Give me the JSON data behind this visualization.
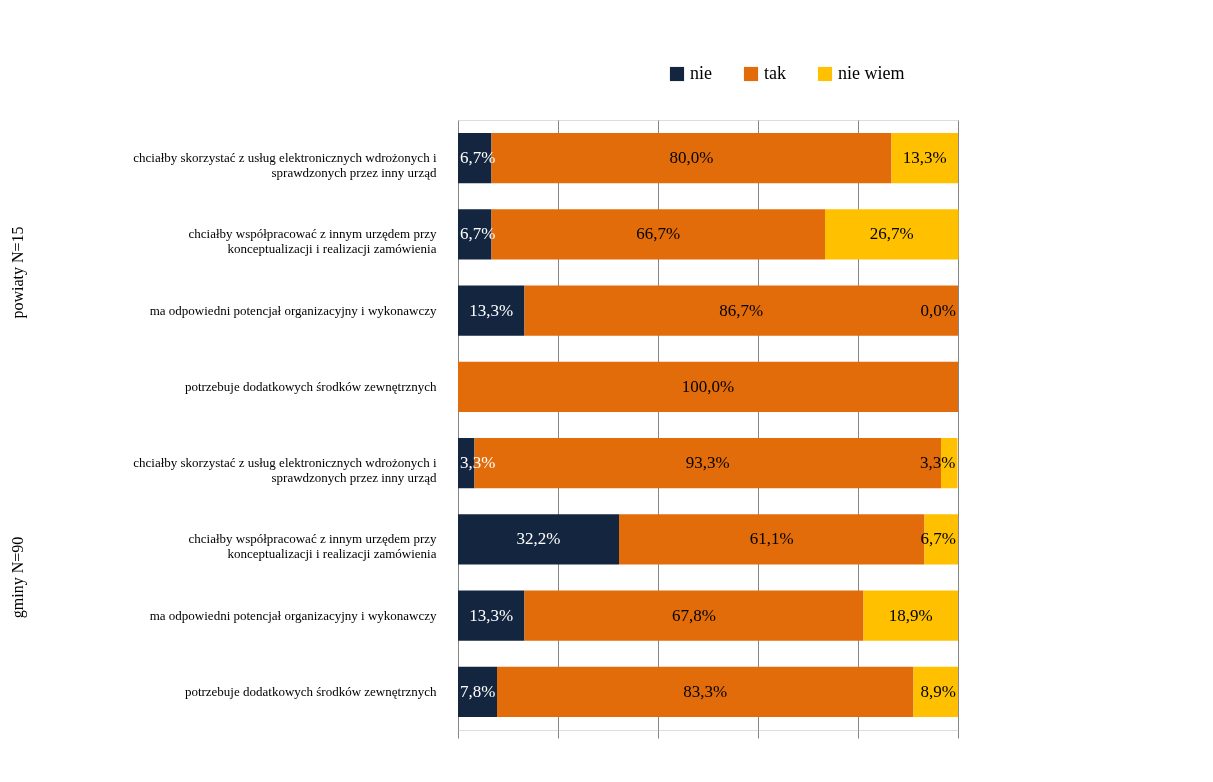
{
  "chart_data": {
    "type": "bar",
    "orientation": "horizontal",
    "stacked": true,
    "categories": [
      "chciałby skorzystać z usług elektronicznych wdrożonych i\nsprawdzonych przez inny urząd",
      "chciałby współpracować z innym urzędem przy\nkonceptualizacji i realizacji zamówienia",
      "ma odpowiedni potencjał organizacyjny i wykonawczy",
      "potrzebuje dodatkowych środków zewnętrznych",
      "chciałby skorzystać z usług elektronicznych wdrożonych i\nsprawdzonych przez inny urząd",
      "chciałby współpracować z innym urzędem przy\nkonceptualizacji i realizacji zamówienia",
      "ma odpowiedni potencjał organizacyjny i wykonawczy",
      "potrzebuje dodatkowych środków zewnętrznych"
    ],
    "series": [
      {
        "name": "nie",
        "color": "#14263f",
        "values": [
          6.7,
          6.7,
          13.3,
          0,
          3.3,
          32.2,
          13.3,
          7.8
        ],
        "value_labels": [
          "6,7%",
          "6,7%",
          "13,3%",
          null,
          "3,3%",
          "32,2%",
          "13,3%",
          "7,8%"
        ]
      },
      {
        "name": "tak",
        "color": "#e36c0a",
        "values": [
          80.0,
          66.7,
          86.7,
          100.0,
          93.3,
          61.1,
          67.8,
          83.3
        ],
        "value_labels": [
          "80,0%",
          "66,7%",
          "86,7%",
          "100,0%",
          "93,3%",
          "61,1%",
          "67,8%",
          "83,3%"
        ]
      },
      {
        "name": "nie wiem",
        "color": "#ffc000",
        "values": [
          13.3,
          26.7,
          0.0,
          0,
          3.3,
          6.7,
          18.9,
          8.9
        ],
        "value_labels": [
          "13,3%",
          "26,7%",
          "0,0%",
          null,
          "3,3%",
          "6,7%",
          "18,9%",
          "8,9%"
        ]
      }
    ],
    "xlim": [
      0,
      100
    ],
    "xticks": [
      {
        "value": 0,
        "label": null
      },
      {
        "value": 20,
        "label": null
      },
      {
        "value": 40,
        "label": null
      },
      {
        "value": 60,
        "label": null
      },
      {
        "value": 80,
        "label": null
      },
      {
        "value": 100,
        "label": null
      }
    ],
    "tick_labels": "y",
    "grid": "x",
    "legend": "top right",
    "annotations": [
      "powiaty N=15",
      "gminy N=90"
    ]
  }
}
